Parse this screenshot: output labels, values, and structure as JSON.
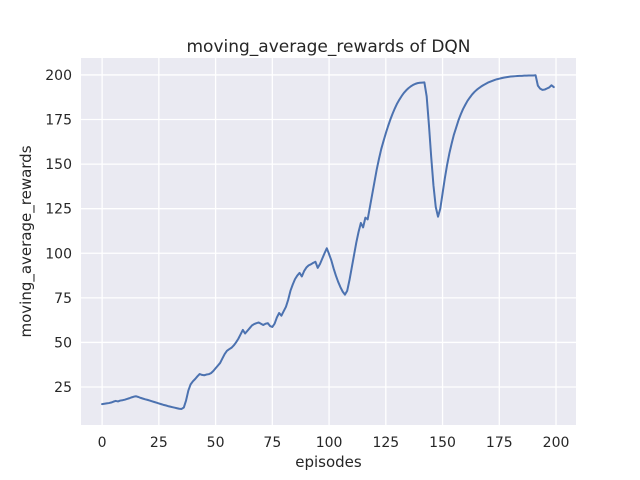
{
  "figure": {
    "background": "#ffffff"
  },
  "chart_data": {
    "type": "line",
    "title": "moving_average_rewards of DQN",
    "xlabel": "episodes",
    "ylabel": "moving_average_rewards",
    "xlim": [
      -9.3,
      208.8
    ],
    "ylim": [
      3.7,
      209.5
    ],
    "xticks": [
      0,
      25,
      50,
      75,
      100,
      125,
      150,
      175,
      200
    ],
    "yticks": [
      25,
      50,
      75,
      100,
      125,
      150,
      175,
      200
    ],
    "grid": true,
    "legend_position": "none",
    "plot_bg_color": "#eaeaf2",
    "grid_color": "#ffffff",
    "line_color": "#4c72b0",
    "text_color": "#262626",
    "series": [
      {
        "name": "moving_average_rewards",
        "x_start": 0,
        "x_step": 1,
        "y": [
          15.4,
          15.6,
          15.8,
          16.0,
          16.3,
          16.8,
          17.2,
          16.9,
          17.4,
          17.6,
          17.9,
          18.3,
          18.7,
          19.2,
          19.6,
          19.8,
          19.4,
          18.9,
          18.5,
          18.1,
          17.8,
          17.4,
          17.0,
          16.6,
          16.2,
          15.8,
          15.4,
          15.0,
          14.7,
          14.3,
          14.0,
          13.7,
          13.4,
          13.1,
          12.8,
          12.7,
          13.5,
          17.5,
          23.0,
          26.5,
          28.2,
          29.5,
          31.0,
          32.3,
          31.8,
          31.6,
          32.0,
          32.2,
          32.8,
          34.0,
          35.5,
          37.0,
          38.5,
          41.0,
          43.5,
          45.3,
          46.2,
          47.0,
          48.3,
          50.0,
          52.0,
          54.5,
          57.0,
          55.0,
          56.5,
          58.0,
          59.5,
          60.3,
          60.8,
          61.2,
          60.5,
          59.8,
          60.5,
          60.8,
          59.2,
          58.7,
          60.5,
          64.0,
          66.5,
          65.0,
          67.5,
          70.0,
          74.0,
          79.0,
          82.5,
          85.5,
          87.5,
          89.0,
          87.0,
          90.0,
          92.0,
          93.2,
          93.8,
          94.6,
          95.2,
          91.8,
          94.0,
          97.0,
          100.0,
          102.8,
          99.5,
          96.0,
          91.5,
          87.5,
          84.0,
          81.0,
          78.5,
          76.8,
          79.0,
          85.0,
          92.0,
          99.0,
          106.0,
          112.0,
          117.0,
          114.5,
          120.0,
          119.0,
          126.0,
          133.0,
          140.0,
          147.0,
          153.0,
          158.5,
          163.0,
          167.3,
          171.3,
          175.0,
          178.3,
          181.3,
          184.0,
          186.2,
          188.2,
          190.0,
          191.4,
          192.6,
          193.6,
          194.4,
          195.0,
          195.4,
          195.6,
          195.7,
          195.8,
          188.0,
          172.0,
          154.0,
          138.0,
          126.0,
          120.5,
          125.0,
          133.5,
          142.0,
          149.5,
          156.0,
          161.5,
          166.5,
          170.5,
          174.5,
          177.8,
          180.8,
          183.2,
          185.5,
          187.3,
          189.0,
          190.4,
          191.6,
          192.6,
          193.5,
          194.3,
          195.0,
          195.7,
          196.2,
          196.7,
          197.2,
          197.6,
          197.9,
          198.2,
          198.5,
          198.7,
          198.9,
          199.1,
          199.2,
          199.3,
          199.4,
          199.5,
          199.5,
          199.6,
          199.6,
          199.7,
          199.7,
          199.7,
          199.8,
          194.0,
          192.3,
          191.6,
          191.8,
          192.4,
          193.0,
          194.2,
          193.2
        ]
      }
    ]
  }
}
